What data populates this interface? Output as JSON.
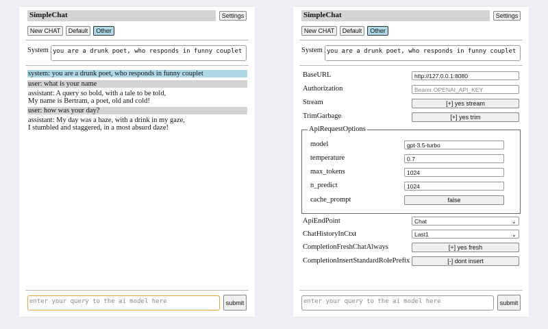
{
  "app_title": "SimpleChat",
  "settings_label": "Settings",
  "chat_buttons": [
    "New CHAT",
    "Default",
    "Other"
  ],
  "system_label": "System",
  "system_prompt": "you are a drunk poet, who responds in funny couplet",
  "messages": [
    {
      "role": "system",
      "lines": [
        "system: you are a drunk poet, who responds in funny couplet"
      ]
    },
    {
      "role": "user",
      "lines": [
        "user: what is your name"
      ]
    },
    {
      "role": "assistant",
      "lines": [
        "assistant: A query so bold, with a tale to be told,",
        "My name is Bertram, a poet, old and cold!"
      ]
    },
    {
      "role": "user",
      "lines": [
        "user: how was your day?"
      ]
    },
    {
      "role": "assistant",
      "lines": [
        "assistant: My day was a haze, with a drink in my gaze,",
        "I stumbled and staggered, in a most absurd daze!"
      ]
    }
  ],
  "query_placeholder": "enter your query to the ai model here",
  "submit_label": "submit",
  "settings": {
    "base_url": {
      "label": "BaseURL",
      "value": "http://127.0.0.1:8080"
    },
    "authorization": {
      "label": "Authorization",
      "placeholder": "Bearer OPENAI_API_KEY"
    },
    "stream": {
      "label": "Stream",
      "value": "[+] yes stream"
    },
    "trim_garbage": {
      "label": "TrimGarbage",
      "value": "[+] yes trim"
    },
    "api_request_options": {
      "legend": "ApiRequestOptions",
      "model": {
        "label": "model",
        "value": "gpt-3.5-turbo"
      },
      "temperature": {
        "label": "temperature",
        "value": "0.7"
      },
      "max_tokens": {
        "label": "max_tokens",
        "value": "1024"
      },
      "n_predict": {
        "label": "n_predict",
        "value": "1024"
      },
      "cache_prompt": {
        "label": "cache_prompt",
        "value": "false"
      }
    },
    "api_endpoint": {
      "label": "ApiEndPoint",
      "value": "Chat"
    },
    "chat_history": {
      "label": "ChatHistoryInCtxt",
      "value": "Last1"
    },
    "completion_fresh": {
      "label": "CompletionFreshChatAlways",
      "value": "[+] yes fresh"
    },
    "completion_insert": {
      "label": "CompletionInsertStandardRolePrefix",
      "value": "[-] dont insert"
    }
  },
  "colors": {
    "system_bg": "#add8e6",
    "user_bg": "#d3d3d3",
    "selected_button": "#add8e6",
    "focus_border": "#e8a33c"
  }
}
